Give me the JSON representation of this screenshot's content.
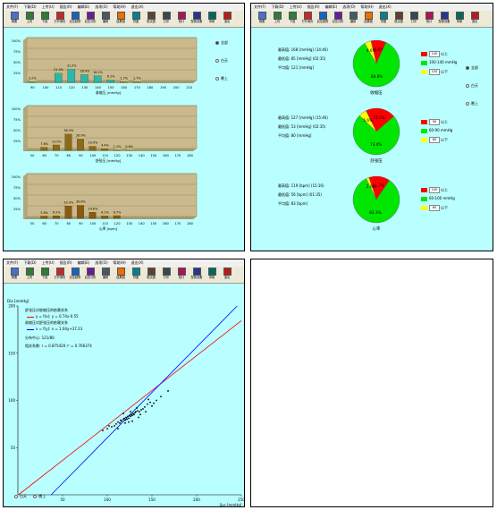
{
  "toolbar": {
    "menu": [
      "文件(F)",
      "下载(D)",
      "上传(U)",
      "报告(R)",
      "编辑(E)",
      "选项(O)",
      "帮助(H)",
      "退出(X)"
    ],
    "buttons": [
      "概要",
      "上传",
      "下载",
      "打开病历",
      "血压趋势",
      "血压分析",
      "编辑",
      "结果图",
      "饼图",
      "散点图",
      "打印",
      "统计",
      "配置设备",
      "帮助",
      "退出"
    ]
  },
  "panel1": {
    "filter": [
      "全部",
      "白天",
      "晚上"
    ],
    "selected_filter": 0,
    "chart_data": [
      {
        "type": "bar",
        "xlabel": "收缩压 [mmHg]",
        "ylim": [
          0,
          100
        ],
        "y_ticks": [
          "100%",
          "75%",
          "50%",
          "25%"
        ],
        "x_ticks": [
          "90",
          "100",
          "110",
          "120",
          "130",
          "140",
          "150",
          "160",
          "170",
          "180",
          "190",
          "200",
          "210"
        ],
        "values": [
          2.2,
          0,
          21.5,
          31.2,
          18.4,
          16.1,
          6.1,
          1.7,
          1.7,
          0,
          0,
          0,
          0
        ],
        "data_labels": [
          "2.2%",
          "",
          "21.5%",
          "31.2%",
          "18.4%",
          "16.1%",
          "6.1%",
          "1.7%",
          "1.7%",
          "",
          "",
          "",
          ""
        ]
      },
      {
        "type": "bar",
        "xlabel": "舒张压 [mmHg]",
        "ylim": [
          0,
          100
        ],
        "y_ticks": [
          "100%",
          "75%",
          "50%",
          "25%"
        ],
        "x_ticks": [
          "50",
          "60",
          "70",
          "80",
          "90",
          "100",
          "110",
          "120",
          "130",
          "140",
          "150",
          "160",
          "170",
          "180"
        ],
        "values": [
          0,
          7.6,
          13.0,
          38.3,
          26.9,
          10.0,
          4.4,
          1.1,
          0.6,
          0,
          0,
          0,
          0,
          0
        ],
        "data_labels": [
          "",
          "7.6%",
          "13.0%",
          "38.3%",
          "26.9%",
          "10.0%",
          "4.4%",
          "1.1%",
          "0.6%",
          "",
          "",
          "",
          "",
          ""
        ]
      },
      {
        "type": "bar",
        "xlabel": "心率 [bpm]",
        "ylim": [
          0,
          100
        ],
        "y_ticks": [
          "100%",
          "75%",
          "50%",
          "25%"
        ],
        "x_ticks": [
          "50",
          "60",
          "70",
          "80",
          "90",
          "100",
          "110",
          "120",
          "130",
          "140",
          "150",
          "160",
          "170",
          "180"
        ],
        "values": [
          0,
          5.6,
          6.2,
          29.3,
          30.8,
          14.6,
          6.1,
          6.7,
          0,
          0,
          0,
          0,
          0,
          0
        ],
        "data_labels": [
          "",
          "5.6%",
          "6.2%",
          "29.3%",
          "30.8%",
          "14.6%",
          "6.1%",
          "6.7%",
          "",
          "",
          "",
          "",
          "",
          ""
        ]
      }
    ]
  },
  "panel2": {
    "filter": [
      "全部",
      "白天",
      "晚上"
    ],
    "selected_filter": 0,
    "pies": [
      {
        "stats": [
          "最高值: 168 [mmHg] (14:46)",
          "最低值: 85 [mmHg] (02:35)",
          "平均值: 121 [mmHg]"
        ],
        "label": "收缩压",
        "slices": [
          10.6,
          84.8,
          4.6
        ],
        "slice_labels": [
          "10.6%",
          "84.8%",
          "4.6%"
        ],
        "thresholds": [
          {
            "value": "140",
            "text": "以上"
          },
          {
            "value": "",
            "text": "100-140 mmHg"
          },
          {
            "value": "100",
            "text": "以下"
          }
        ]
      },
      {
        "stats": [
          "最高值: 127 [mmHg] (15:46)",
          "最低值: 53 [mmHg] (02:35)",
          "平均值: 80 [mmHg]"
        ],
        "label": "舒张压",
        "slices": [
          21.0,
          73.4,
          5.6
        ],
        "slice_labels": [
          "21.0%",
          "73.4%",
          "5.6%"
        ],
        "thresholds": [
          {
            "value": "90",
            "text": "以上"
          },
          {
            "value": "",
            "text": "60-90 mmHg"
          },
          {
            "value": "60",
            "text": "以下"
          }
        ]
      },
      {
        "stats": [
          "最高值: 119 [bpm] (15:16)",
          "最低值: 56 [bpm] (01:35)",
          "平均值: 83 [bpm]"
        ],
        "label": "心率",
        "slices": [
          14.7,
          83.3,
          2.0
        ],
        "slice_labels": [
          "14.7%",
          "83.3%",
          "2.0%"
        ],
        "thresholds": [
          {
            "value": "100",
            "text": "以上"
          },
          {
            "value": "",
            "text": "60-100 mmHg"
          },
          {
            "value": "60",
            "text": "以下"
          }
        ]
      }
    ],
    "colors": [
      "#ff0000",
      "#00e600",
      "#ffff00"
    ]
  },
  "panel3": {
    "legend": [
      "舒张压对收缩压的依赖关系",
      "y = f(x): y = 0.74x-0.55",
      "收缩压对舒张压的依赖关系",
      "x = f(y): x = 1.04y+37.23",
      "分布中心: 121/80",
      "相关系数: r = 0.875420  r² = 0.766374"
    ],
    "filter": [
      "白天",
      "晚上"
    ],
    "chart_data": {
      "type": "scatter",
      "xlabel": "Sys [mmHg]",
      "ylabel": "Dia [mmHg]",
      "xlim": [
        0,
        250
      ],
      "ylim": [
        0,
        200
      ],
      "x_ticks": [
        50,
        100,
        150,
        200,
        250
      ],
      "y_ticks": [
        50,
        100,
        150,
        200
      ],
      "points": [
        [
          105,
          72
        ],
        [
          108,
          73
        ],
        [
          110,
          75
        ],
        [
          112,
          77
        ],
        [
          114,
          76
        ],
        [
          115,
          79
        ],
        [
          116,
          78
        ],
        [
          118,
          80
        ],
        [
          119,
          81
        ],
        [
          120,
          79
        ],
        [
          121,
          82
        ],
        [
          122,
          80
        ],
        [
          123,
          83
        ],
        [
          124,
          81
        ],
        [
          125,
          84
        ],
        [
          126,
          83
        ],
        [
          127,
          85
        ],
        [
          128,
          84
        ],
        [
          129,
          86
        ],
        [
          130,
          85
        ],
        [
          131,
          87
        ],
        [
          132,
          88
        ],
        [
          134,
          89
        ],
        [
          136,
          88
        ],
        [
          138,
          90
        ],
        [
          140,
          91
        ],
        [
          142,
          93
        ],
        [
          145,
          96
        ],
        [
          148,
          98
        ],
        [
          152,
          97
        ],
        [
          155,
          100
        ],
        [
          160,
          104
        ],
        [
          168,
          110
        ],
        [
          95,
          68
        ],
        [
          100,
          70
        ],
        [
          102,
          73
        ],
        [
          118,
          86
        ],
        [
          124,
          77
        ],
        [
          133,
          92
        ],
        [
          137,
          85
        ],
        [
          143,
          88
        ],
        [
          150,
          94
        ],
        [
          128,
          78
        ],
        [
          112,
          70
        ],
        [
          120,
          76
        ],
        [
          126,
          88
        ],
        [
          135,
          82
        ],
        [
          146,
          101
        ]
      ],
      "lines": [
        {
          "name": "y = f(x)",
          "color": "#ff0000",
          "slope": 0.74,
          "intercept": -0.55
        },
        {
          "name": "x = f(y)",
          "color": "#0000ff",
          "slope": 0.9615,
          "intercept": -35.8
        }
      ]
    }
  }
}
